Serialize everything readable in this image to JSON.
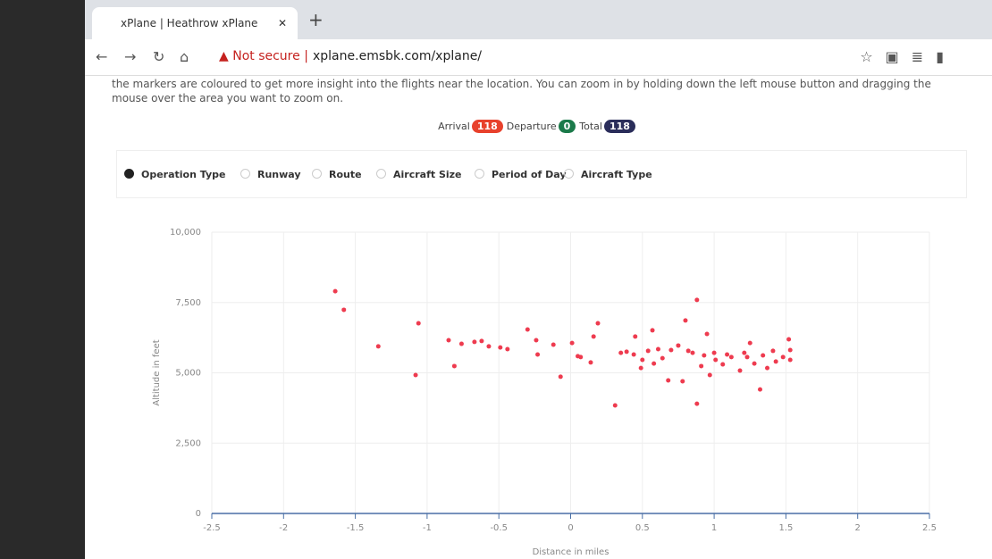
{
  "browser": {
    "tab_title": "xPlane | Heathrow xPlane",
    "security": "Not secure",
    "url": "xplane.emsbk.com/xplane/"
  },
  "intro": "the markers are coloured to get more insight into the flights near the location. You can zoom in by holding down the left mouse button and dragging the mouse over the area you want to zoom on.",
  "counts": [
    {
      "label": "Arrival",
      "value": "118"
    },
    {
      "label": "Departure",
      "value": "0"
    },
    {
      "label": "Total",
      "value": "118"
    }
  ],
  "options": [
    "Operation Type",
    "Runway",
    "Route",
    "Aircraft Size",
    "Period of Day",
    "Aircraft Type"
  ],
  "chart_data": {
    "type": "scatter",
    "x_label": "Distance in miles",
    "y_label": "Altitude in feet",
    "color": "#ee3b4f",
    "grid": true,
    "xlim": [
      -2.5,
      2.5
    ],
    "xticks": [
      -2.5,
      -2,
      -1.5,
      -1,
      -0.5,
      0,
      0.5,
      1,
      1.5,
      2,
      2.5
    ],
    "ylim": [
      0,
      10000
    ],
    "yticks": [
      0,
      {
        "value": 2500,
        "label": "2,500"
      },
      {
        "value": 5000,
        "label": "5,000"
      },
      {
        "value": 7500,
        "label": "7,500"
      },
      {
        "value": 10000,
        "label": "10,000"
      }
    ],
    "x": [
      -1.64,
      -1.58,
      -1.34,
      -1.08,
      -1.06,
      -0.85,
      -0.81,
      -0.76,
      -0.67,
      -0.62,
      -0.57,
      -0.49,
      -0.44,
      -0.3,
      -0.24,
      -0.23,
      -0.12,
      -0.07,
      0.01,
      0.05,
      0.07,
      0.14,
      0.16,
      0.19,
      0.31,
      0.35,
      0.39,
      0.44,
      0.45,
      0.49,
      0.5,
      0.54,
      0.57,
      0.58,
      0.61,
      0.64,
      0.68,
      0.7,
      0.75,
      0.78,
      0.8,
      0.82,
      0.85,
      0.88,
      0.88,
      0.91,
      0.93,
      0.95,
      0.97,
      1.0,
      1.01,
      1.06,
      1.09,
      1.12,
      1.18,
      1.21,
      1.23,
      1.25,
      1.28,
      1.32,
      1.34,
      1.37,
      1.41,
      1.43,
      1.48,
      1.52,
      1.53,
      1.53
    ],
    "values": [
      7900,
      7240,
      5940,
      4920,
      6760,
      6160,
      5240,
      6030,
      6100,
      6130,
      5940,
      5900,
      5840,
      6540,
      6160,
      5650,
      6000,
      4860,
      6060,
      5590,
      5560,
      5370,
      6290,
      6760,
      3840,
      5710,
      5750,
      5650,
      6290,
      5170,
      5460,
      5780,
      6510,
      5330,
      5840,
      5520,
      4730,
      5810,
      5970,
      4700,
      6860,
      5780,
      5710,
      7590,
      3900,
      5240,
      5620,
      6380,
      4920,
      5710,
      5460,
      5300,
      5650,
      5560,
      5080,
      5710,
      5560,
      6060,
      5330,
      4410,
      5620,
      5170,
      5780,
      5400,
      5560,
      6190,
      5810,
      5460
    ]
  }
}
